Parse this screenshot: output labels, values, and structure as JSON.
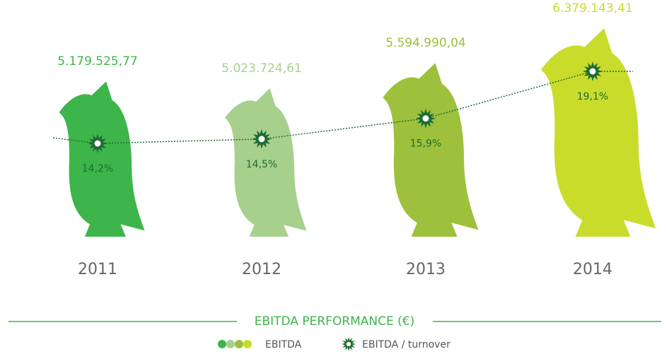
{
  "chart_data": {
    "type": "pictograph",
    "title": "EBITDA PERFORMANCE (€)",
    "categories": [
      "2011",
      "2012",
      "2013",
      "2014"
    ],
    "series": [
      {
        "name": "EBITDA",
        "colors": [
          "#3db54a",
          "#a8d08d",
          "#9dc13c",
          "#c9dc2c"
        ],
        "values": [
          5179525.77,
          5023724.61,
          5594990.04,
          6379143.41
        ],
        "value_labels": [
          "5.179.525,77",
          "5.023.724,61",
          "5.594.990,04",
          "6.379.143,41"
        ]
      },
      {
        "name": "EBITDA / turnover",
        "color": "#1e6b35",
        "values": [
          14.2,
          14.5,
          15.9,
          19.1
        ],
        "value_labels": [
          "14,2%",
          "14,5%",
          "15,9%",
          "19,1%"
        ]
      }
    ]
  }
}
